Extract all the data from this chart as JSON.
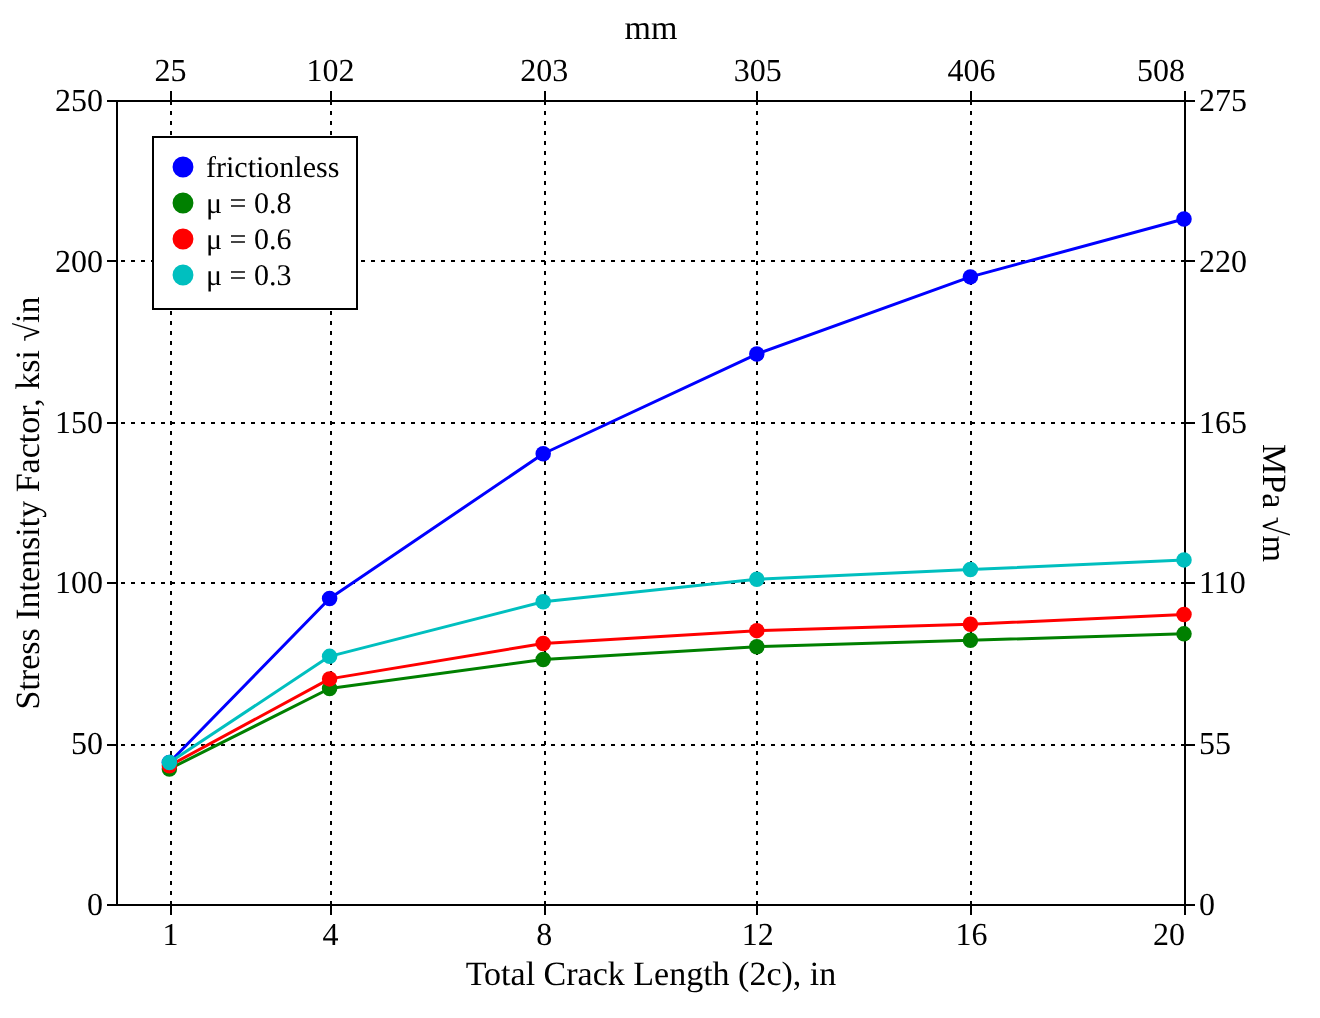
{
  "chart_data": {
    "type": "line",
    "xlabel": "Total Crack Length (2c), in",
    "ylabel": "Stress Intensity Factor, ksi √in",
    "y2label": "MPa √m",
    "x2label": "mm",
    "x": [
      1,
      4,
      8,
      12,
      16,
      20
    ],
    "series": [
      {
        "name": "frictionless",
        "color": "#0000ff",
        "values": [
          44,
          95,
          140,
          171,
          195,
          213
        ]
      },
      {
        "name": "μ = 0.8",
        "color": "#008000",
        "values": [
          42,
          67,
          76,
          80,
          82,
          84
        ]
      },
      {
        "name": "μ = 0.6",
        "color": "#ff0000",
        "values": [
          43,
          70,
          81,
          85,
          87,
          90
        ]
      },
      {
        "name": "μ = 0.3",
        "color": "#00bfbf",
        "values": [
          44,
          77,
          94,
          101,
          104,
          107
        ]
      }
    ],
    "xlim": [
      0,
      20
    ],
    "xticks": [
      1,
      4,
      8,
      12,
      16,
      20
    ],
    "ylim": [
      0,
      250
    ],
    "yticks": [
      0,
      50,
      100,
      150,
      200,
      250
    ],
    "y2lim": [
      0,
      275
    ],
    "y2ticks": [
      0,
      55,
      110,
      165,
      220,
      275
    ],
    "x2lim": [
      0,
      508
    ],
    "x2ticks": [
      {
        "value": 25.4,
        "label": "25"
      },
      {
        "value": 101.6,
        "label": "102"
      },
      {
        "value": 203.2,
        "label": "203"
      },
      {
        "value": 304.8,
        "label": "305"
      },
      {
        "value": 406.4,
        "label": "406"
      },
      {
        "value": 508,
        "label": "508"
      }
    ],
    "grid": true,
    "legend": "top left",
    "marker": "circle",
    "line_style": "solid"
  }
}
